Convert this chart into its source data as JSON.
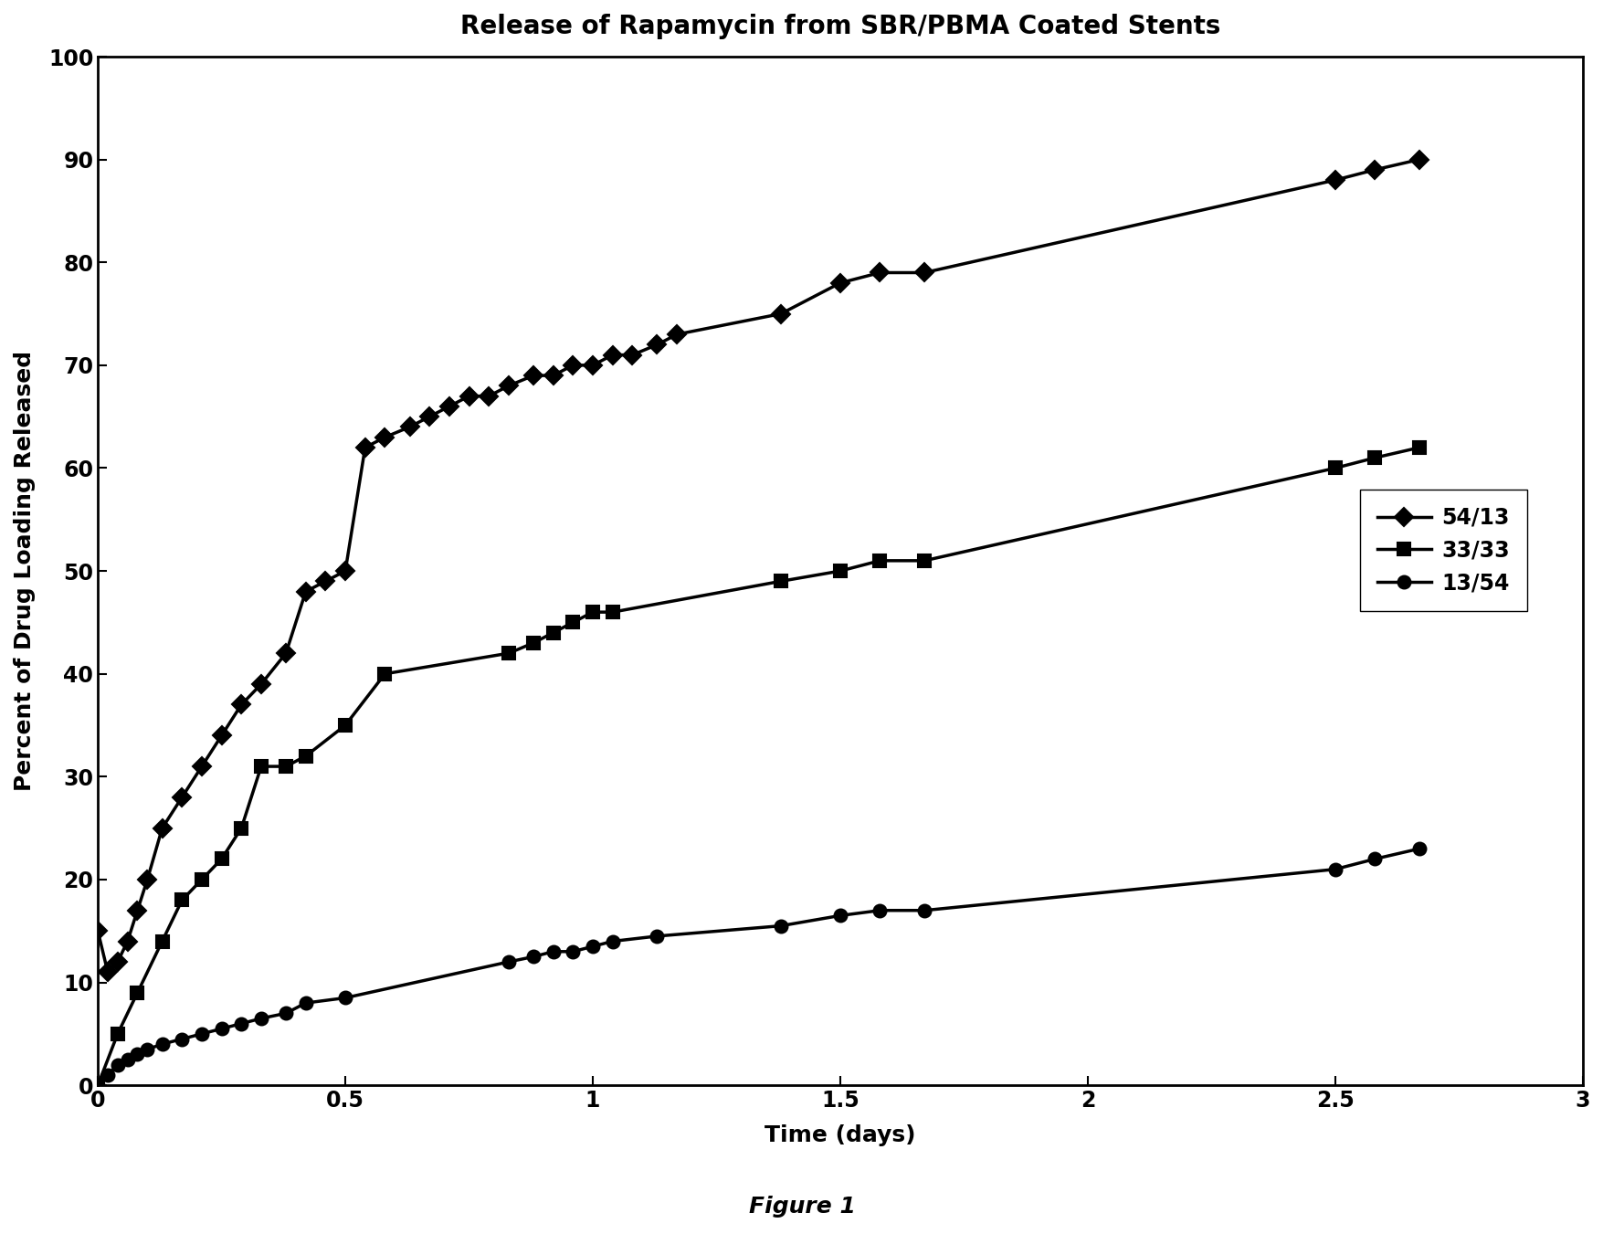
{
  "title": "Release of Rapamycin from SBR/PBMA Coated Stents",
  "xlabel": "Time (days)",
  "ylabel": "Percent of Drug Loading Released",
  "figure_caption": "Figure 1",
  "xlim": [
    0,
    3
  ],
  "ylim": [
    0,
    100
  ],
  "xticks": [
    0,
    0.5,
    1,
    1.5,
    2,
    2.5,
    3
  ],
  "yticks": [
    0,
    10,
    20,
    30,
    40,
    50,
    60,
    70,
    80,
    90,
    100
  ],
  "series": [
    {
      "label": "54/13",
      "marker": "D",
      "markersize": 10,
      "x": [
        0,
        0.02,
        0.04,
        0.06,
        0.08,
        0.1,
        0.13,
        0.17,
        0.21,
        0.25,
        0.29,
        0.33,
        0.38,
        0.42,
        0.46,
        0.5,
        0.54,
        0.58,
        0.63,
        0.67,
        0.71,
        0.75,
        0.79,
        0.83,
        0.88,
        0.92,
        0.96,
        1.0,
        1.04,
        1.08,
        1.13,
        1.17,
        1.38,
        1.5,
        1.58,
        1.67,
        2.5,
        2.58,
        2.67
      ],
      "y": [
        15,
        11,
        12,
        14,
        17,
        20,
        25,
        28,
        31,
        34,
        37,
        39,
        42,
        48,
        49,
        50,
        62,
        63,
        64,
        65,
        66,
        67,
        67,
        68,
        69,
        69,
        70,
        70,
        71,
        71,
        72,
        73,
        75,
        78,
        79,
        79,
        88,
        89,
        90
      ]
    },
    {
      "label": "33/33",
      "marker": "s",
      "markersize": 10,
      "x": [
        0,
        0.04,
        0.08,
        0.13,
        0.17,
        0.21,
        0.25,
        0.29,
        0.33,
        0.38,
        0.42,
        0.5,
        0.58,
        0.83,
        0.88,
        0.92,
        0.96,
        1.0,
        1.04,
        1.38,
        1.5,
        1.58,
        1.67,
        2.5,
        2.58,
        2.67
      ],
      "y": [
        0,
        5,
        9,
        14,
        18,
        20,
        22,
        25,
        31,
        31,
        32,
        35,
        40,
        42,
        43,
        44,
        45,
        46,
        46,
        49,
        50,
        51,
        51,
        60,
        61,
        62
      ]
    },
    {
      "label": "13/54",
      "marker": "o",
      "markersize": 10,
      "x": [
        0,
        0.02,
        0.04,
        0.06,
        0.08,
        0.1,
        0.13,
        0.17,
        0.21,
        0.25,
        0.29,
        0.33,
        0.38,
        0.42,
        0.5,
        0.83,
        0.88,
        0.92,
        0.96,
        1.0,
        1.04,
        1.13,
        1.38,
        1.5,
        1.58,
        1.67,
        2.5,
        2.58,
        2.67
      ],
      "y": [
        0,
        1,
        2,
        2.5,
        3,
        3.5,
        4,
        4.5,
        5,
        5.5,
        6,
        6.5,
        7,
        8,
        8.5,
        12,
        12.5,
        13,
        13,
        13.5,
        14,
        14.5,
        15.5,
        16.5,
        17,
        17,
        21,
        22,
        23
      ]
    }
  ],
  "line_color": "#000000",
  "line_width": 2.5,
  "markerfacecolor": "#000000",
  "markeredgecolor": "#000000",
  "background_color": "#ffffff",
  "title_fontsize": 20,
  "label_fontsize": 18,
  "tick_fontsize": 17,
  "legend_fontsize": 17,
  "caption_fontsize": 18
}
